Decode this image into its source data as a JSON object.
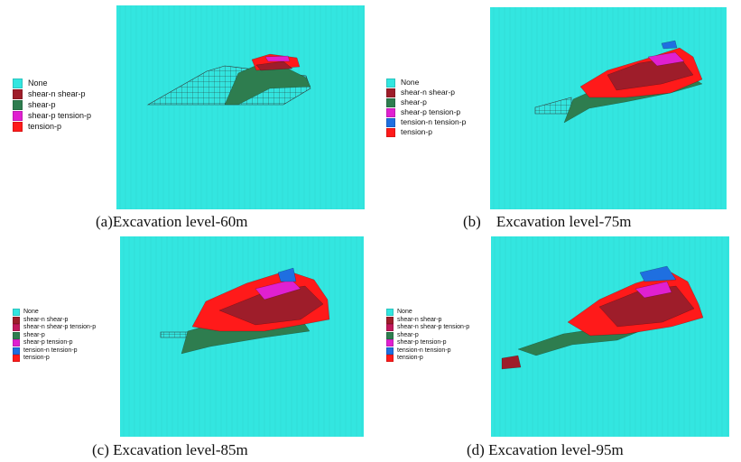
{
  "colors": {
    "None": "#33e6e0",
    "shear-n shear-p": "#9e1d2a",
    "shear-n shear-p tension-p": "#c2185b",
    "shear-p": "#2e7d4f",
    "shear-p tension-p": "#e020d0",
    "tension-n tension-p": "#1f6fe0",
    "tension-p": "#ff1a1a"
  },
  "panels": [
    {
      "caption": "(a)Excavation level-60m",
      "legend": [
        "None",
        "shear-n shear-p",
        "shear-p",
        "shear-p tension-p",
        "tension-p"
      ]
    },
    {
      "caption": "(b)    Excavation level-75m",
      "legend": [
        "None",
        "shear-n shear-p",
        "shear-p",
        "shear-p tension-p",
        "tension-n tension-p",
        "tension-p"
      ]
    },
    {
      "caption": "(c) Excavation level-85m",
      "legend": [
        "None",
        "shear-n shear-p",
        "shear-n shear-p tension-p",
        "shear-p",
        "shear-p tension-p",
        "tension-n tension-p",
        "tension-p"
      ]
    },
    {
      "caption": "(d) Excavation level-95m",
      "legend": [
        "None",
        "shear-n shear-p",
        "shear-n shear-p tension-p",
        "shear-p",
        "shear-p tension-p",
        "tension-n tension-p",
        "tension-p"
      ]
    }
  ]
}
